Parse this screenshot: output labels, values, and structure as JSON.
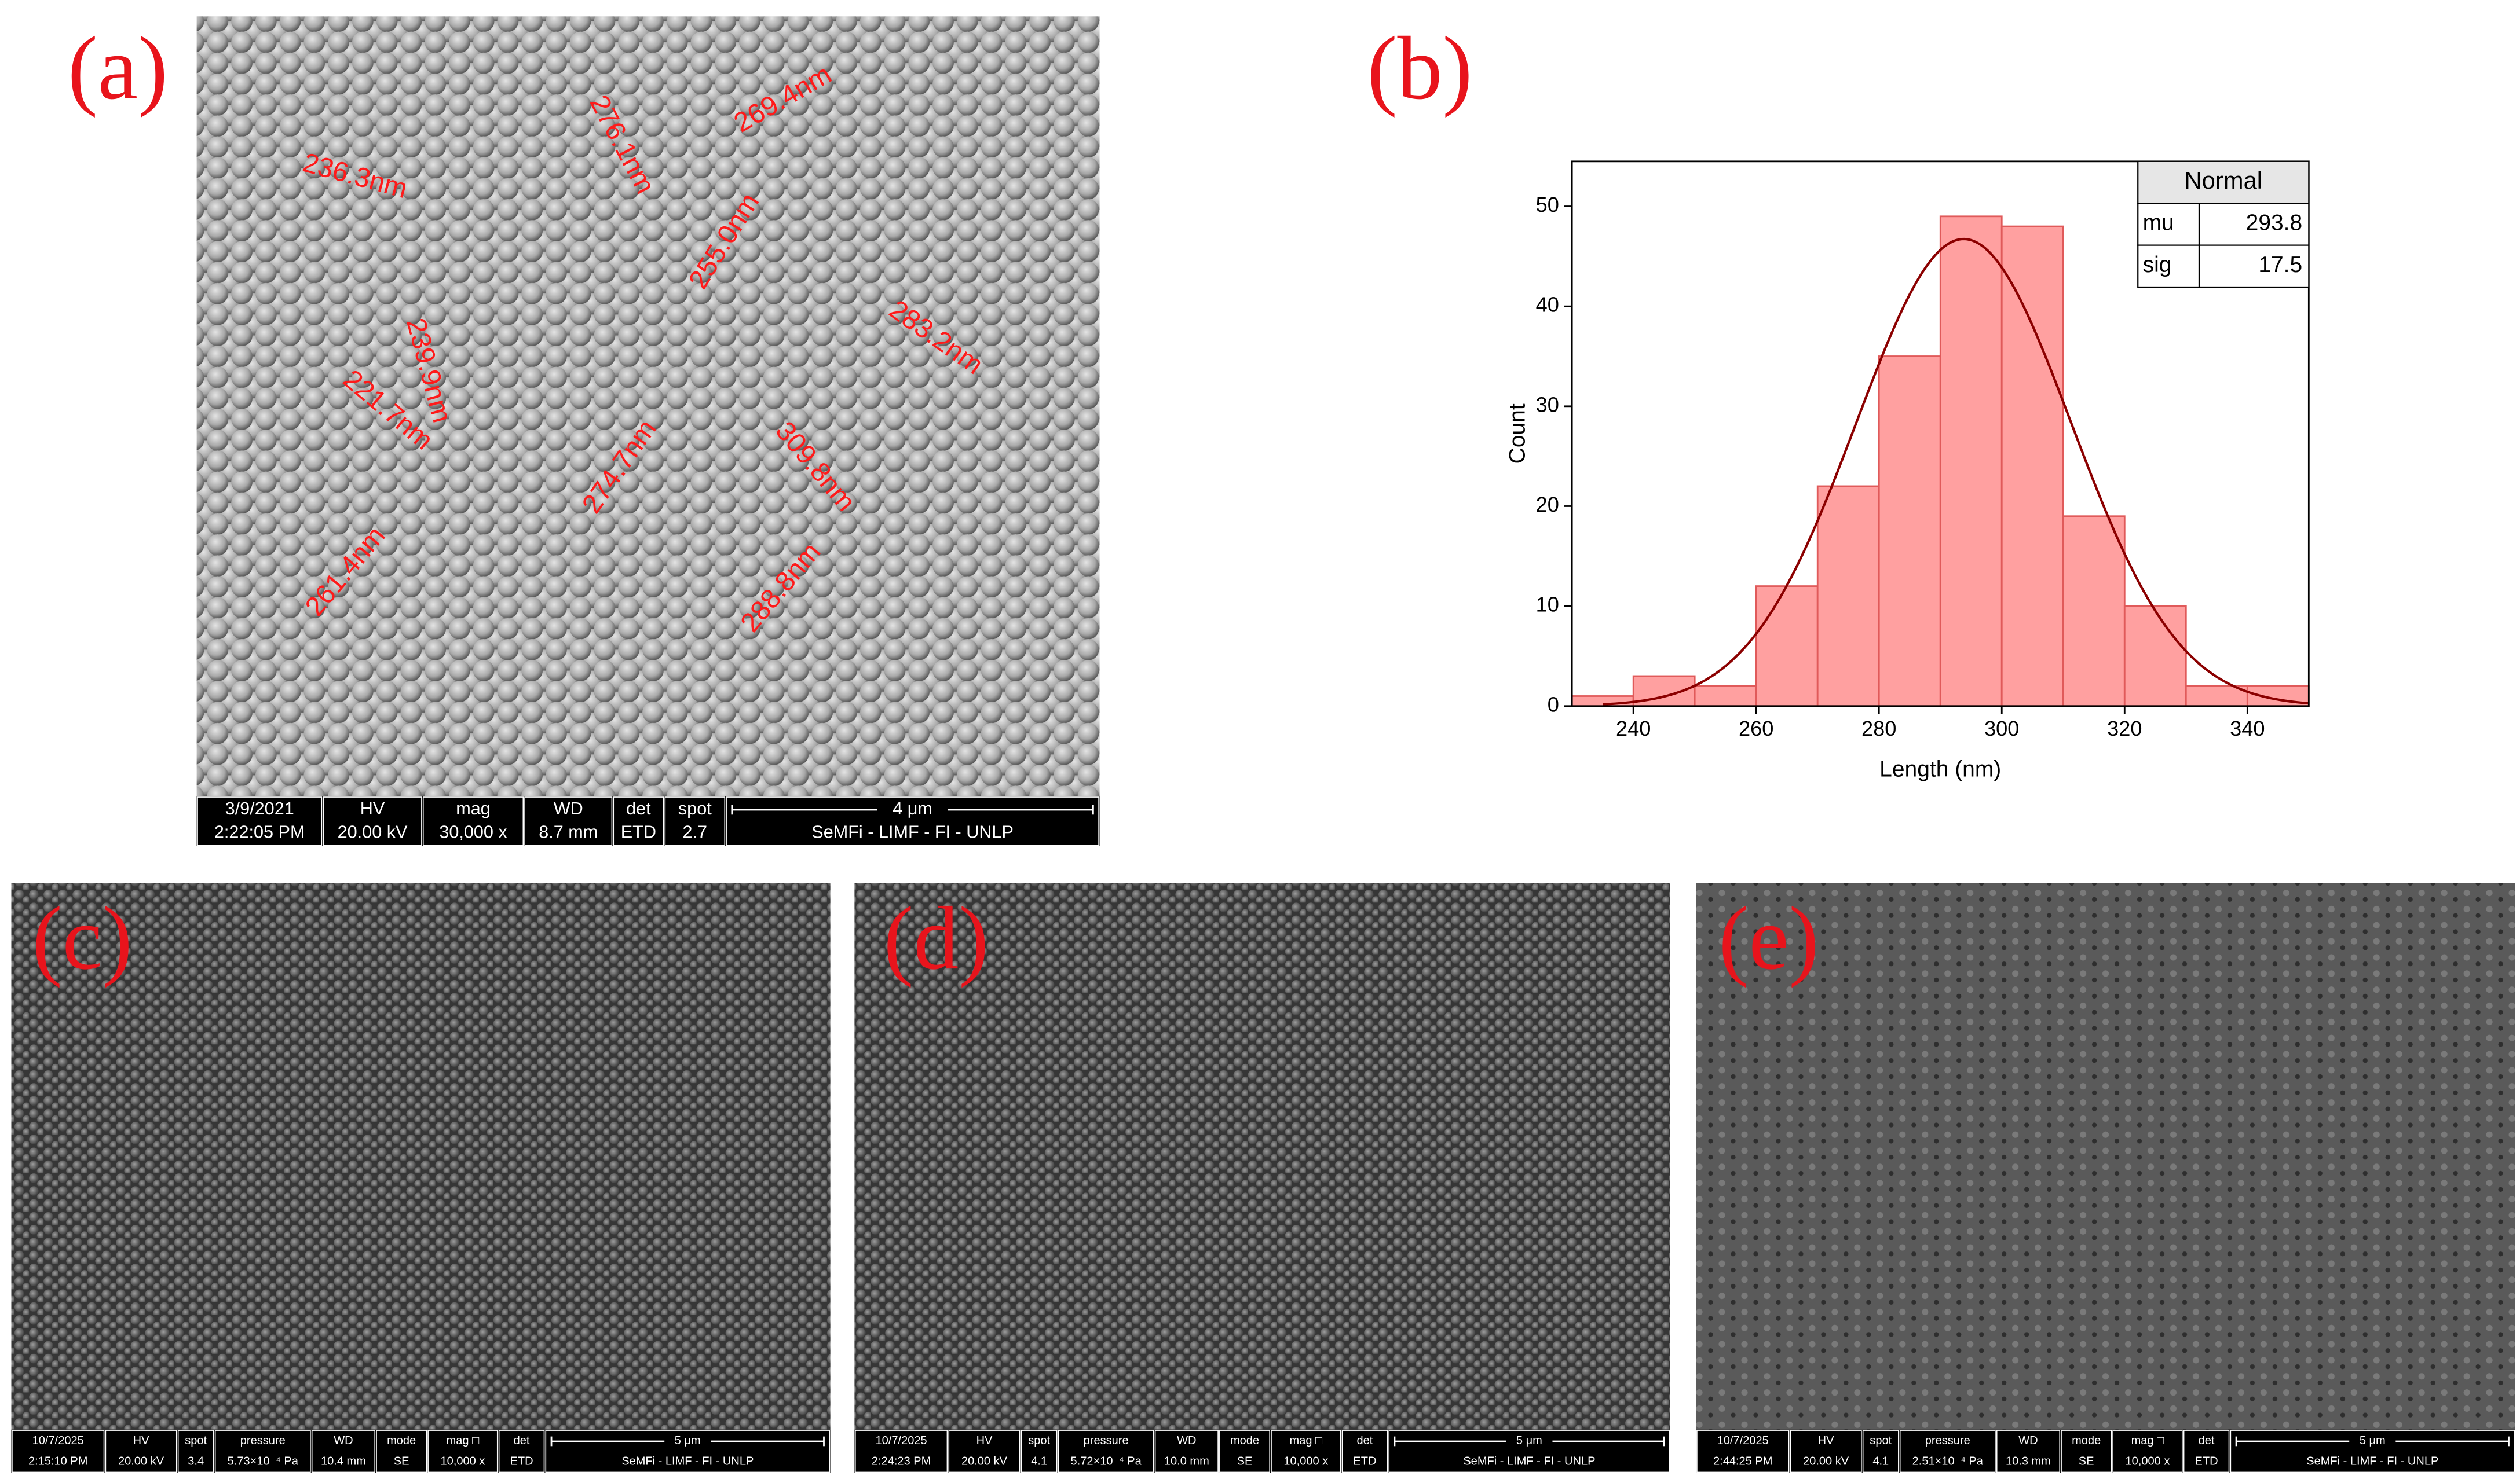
{
  "panels": [
    {
      "label": "(a)",
      "annotations": [
        "236.3nm",
        "276.1nm",
        "269.4nm",
        "255.0nm",
        "239.9nm",
        "221.7nm",
        "283.2nm",
        "274.7nm",
        "309.8nm",
        "261.4nm",
        "288.8nm"
      ],
      "info": [
        [
          "3/9/2021",
          "2:22:05 PM"
        ],
        [
          "HV",
          "20.00 kV"
        ],
        [
          "mag",
          "30,000 x"
        ],
        [
          "WD",
          "8.7 mm"
        ],
        [
          "det",
          "ETD"
        ],
        [
          "spot",
          "2.7"
        ]
      ],
      "scale": "4 μm",
      "credit": "SeMFi - LIMF - FI - UNLP"
    },
    {
      "label": "(c)",
      "info": [
        [
          "10/7/2025",
          "2:15:10 PM"
        ],
        [
          "HV",
          "20.00 kV"
        ],
        [
          "spot",
          "3.4"
        ],
        [
          "pressure",
          "5.73×10⁻⁴ Pa"
        ],
        [
          "WD",
          "10.4 mm"
        ],
        [
          "mode",
          "SE"
        ],
        [
          "mag □",
          "10,000 x"
        ],
        [
          "det",
          "ETD"
        ]
      ],
      "scale": "5 μm",
      "credit": "SeMFi - LIMF - FI - UNLP"
    },
    {
      "label": "(d)",
      "info": [
        [
          "10/7/2025",
          "2:24:23 PM"
        ],
        [
          "HV",
          "20.00 kV"
        ],
        [
          "spot",
          "4.1"
        ],
        [
          "pressure",
          "5.72×10⁻⁴ Pa"
        ],
        [
          "WD",
          "10.0 mm"
        ],
        [
          "mode",
          "SE"
        ],
        [
          "mag □",
          "10,000 x"
        ],
        [
          "det",
          "ETD"
        ]
      ],
      "scale": "5 μm",
      "credit": "SeMFi - LIMF - FI - UNLP"
    },
    {
      "label": "(e)",
      "info": [
        [
          "10/7/2025",
          "2:44:25 PM"
        ],
        [
          "HV",
          "20.00 kV"
        ],
        [
          "spot",
          "4.1"
        ],
        [
          "pressure",
          "2.51×10⁻⁴ Pa"
        ],
        [
          "WD",
          "10.3 mm"
        ],
        [
          "mode",
          "SE"
        ],
        [
          "mag □",
          "10,000 x"
        ],
        [
          "det",
          "ETD"
        ]
      ],
      "scale": "5 μm",
      "credit": "SeMFi - LIMF - FI - UNLP"
    }
  ],
  "chart_data": {
    "type": "histogram",
    "label": "(b)",
    "x_label": "Length (nm)",
    "y_label": "Count",
    "bins": [
      230,
      240,
      250,
      260,
      270,
      280,
      290,
      300,
      310,
      320,
      330,
      340,
      350
    ],
    "counts": [
      1,
      3,
      2,
      12,
      22,
      35,
      49,
      48,
      19,
      10,
      2,
      2
    ],
    "color": "#ffa0a0",
    "edge_color": "#e05a5a",
    "curve_color": "#8b0000",
    "fit": {
      "name": "Normal",
      "labels": [
        "mu",
        "sig"
      ],
      "values": [
        293.8,
        17.5
      ]
    },
    "xlim": [
      230,
      350
    ],
    "ylim": [
      0,
      54.5
    ],
    "xticks": [
      240,
      260,
      280,
      300,
      320,
      340
    ],
    "yticks": [
      0,
      10,
      20,
      30,
      40,
      50
    ]
  }
}
